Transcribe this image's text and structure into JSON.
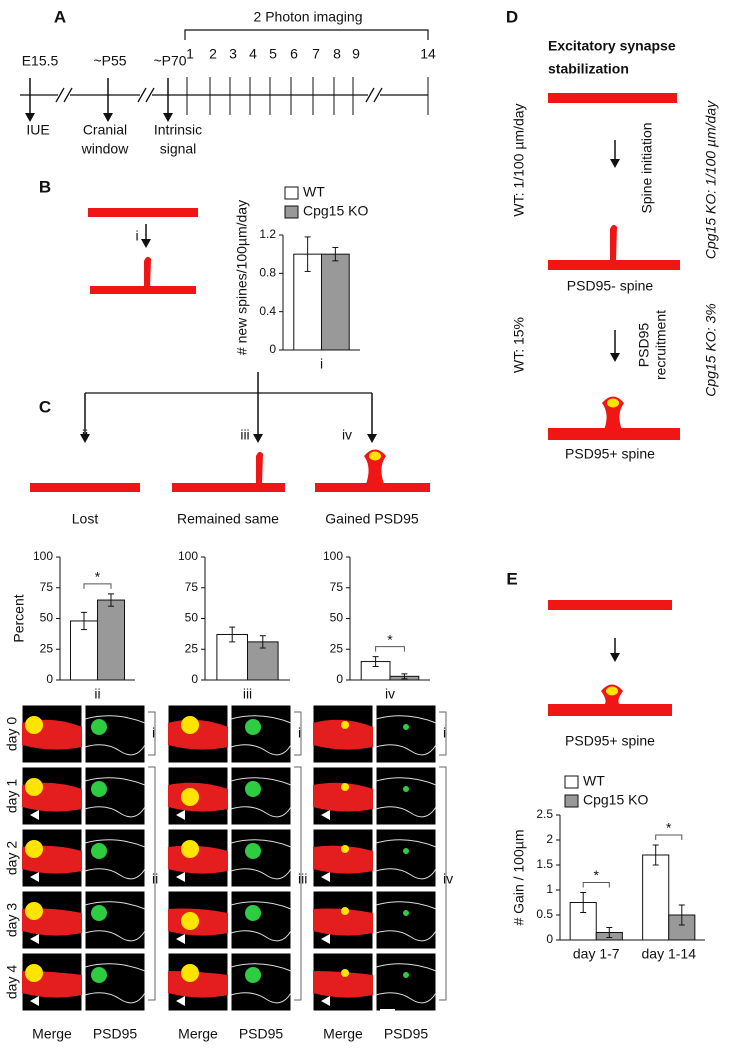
{
  "panels": {
    "A": {
      "letter": "A",
      "imaging": "2 Photon imaging",
      "ticks": [
        "E15.5",
        "~P55",
        "~P70",
        "1",
        "2",
        "3",
        "4",
        "5",
        "6",
        "7",
        "8",
        "9",
        "14"
      ],
      "events": [
        [
          "IUE"
        ],
        [
          "Cranial",
          "window"
        ],
        [
          "Intrinsic",
          "signal"
        ]
      ]
    },
    "B": {
      "letter": "B",
      "step": "i"
    },
    "C": {
      "letter": "C",
      "steps": [
        "ii",
        "iii",
        "iv"
      ],
      "outcomes": [
        "Lost",
        "Remained same",
        "Gained PSD95"
      ],
      "images": {
        "rows": [
          "day 0",
          "day 1",
          "day 2",
          "day 3",
          "day 4"
        ],
        "columns": [
          "Merge",
          "PSD95"
        ],
        "brackets": [
          [
            "i",
            "ii"
          ],
          [
            "i",
            "iii"
          ],
          [
            "i",
            "iv"
          ]
        ]
      }
    },
    "D": {
      "letter": "D",
      "title": [
        "Excitatory synapse",
        "stabilization"
      ],
      "step1": "Spine initiation",
      "wt1": "WT: 1/100 µm/day",
      "ko1": "Cpg15 KO: 1/100 µm/day",
      "state1": "PSD95- spine",
      "step2": [
        "PSD95",
        "recruitment"
      ],
      "wt2": "WT: 15%",
      "ko2": "Cpg15 KO: 3%",
      "state2": "PSD95+ spine"
    },
    "E": {
      "letter": "E",
      "state": "PSD95+ spine"
    }
  },
  "chart_data": [
    {
      "type": "bar",
      "y_label": "# new spines/100µm/day",
      "categories": [
        "i"
      ],
      "series": [
        {
          "name": "WT",
          "color": "#ffffff",
          "values": [
            1.0
          ],
          "errors": [
            0.18
          ]
        },
        {
          "name": "Cpg15 KO",
          "color": "#999999",
          "values": [
            1.0
          ],
          "errors": [
            0.07
          ]
        }
      ],
      "ylim": [
        0,
        1.2
      ],
      "yticks": [
        0,
        0.4,
        0.8,
        1.2
      ],
      "legend": true
    },
    {
      "type": "bar",
      "y_label": "Percent",
      "categories": [
        "ii"
      ],
      "series": [
        {
          "color": "#ffffff",
          "values": [
            48
          ],
          "errors": [
            7
          ]
        },
        {
          "color": "#999999",
          "values": [
            65
          ],
          "errors": [
            5
          ]
        }
      ],
      "ylim": [
        0,
        100
      ],
      "yticks": [
        0,
        25,
        50,
        75,
        100
      ],
      "significance": [
        "*"
      ]
    },
    {
      "type": "bar",
      "categories": [
        "iii"
      ],
      "series": [
        {
          "color": "#ffffff",
          "values": [
            37
          ],
          "errors": [
            6
          ]
        },
        {
          "color": "#999999",
          "values": [
            31
          ],
          "errors": [
            5
          ]
        }
      ],
      "ylim": [
        0,
        100
      ],
      "yticks": [
        0,
        25,
        50,
        75,
        100
      ]
    },
    {
      "type": "bar",
      "categories": [
        "iv"
      ],
      "series": [
        {
          "color": "#ffffff",
          "values": [
            15
          ],
          "errors": [
            4
          ]
        },
        {
          "color": "#999999",
          "values": [
            3
          ],
          "errors": [
            2
          ]
        }
      ],
      "ylim": [
        0,
        100
      ],
      "yticks": [
        0,
        25,
        50,
        75,
        100
      ],
      "significance": [
        "*"
      ]
    },
    {
      "type": "bar",
      "y_label": "# Gain / 100µm",
      "categories": [
        "day 1-7",
        "day 1-14"
      ],
      "series": [
        {
          "name": "WT",
          "color": "#ffffff",
          "values": [
            0.75,
            1.7
          ],
          "errors": [
            0.2,
            0.2
          ]
        },
        {
          "name": "Cpg15 KO",
          "color": "#999999",
          "values": [
            0.15,
            0.5
          ],
          "errors": [
            0.1,
            0.2
          ]
        }
      ],
      "ylim": [
        0,
        2.5
      ],
      "yticks": [
        0,
        0.5,
        1,
        1.5,
        2,
        2.5
      ],
      "significance": [
        "*",
        "*"
      ],
      "legend": true
    }
  ]
}
